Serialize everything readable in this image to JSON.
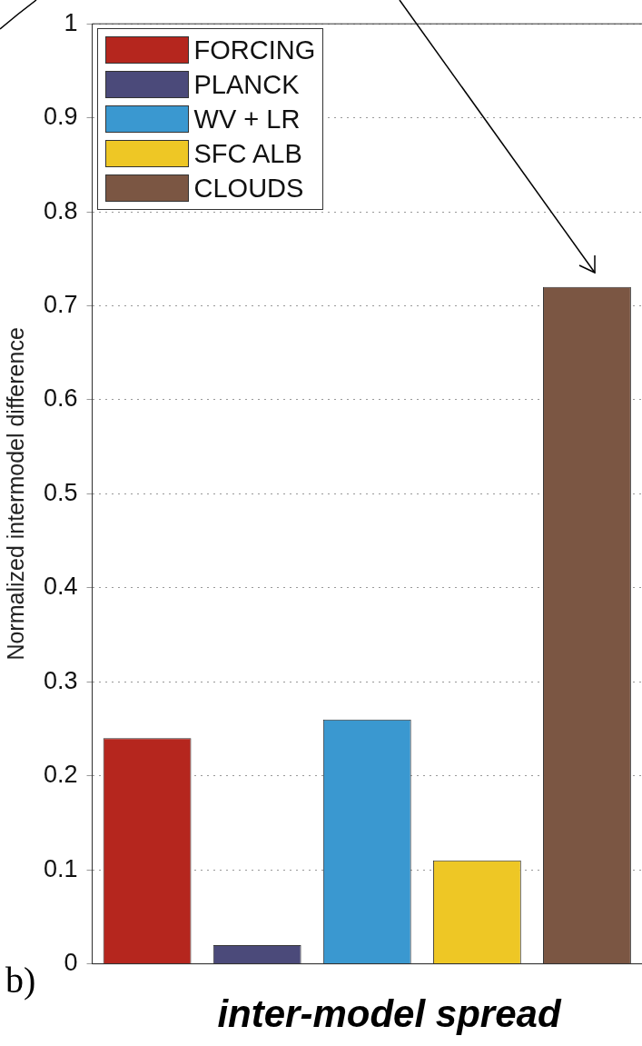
{
  "chart_data": {
    "type": "bar",
    "xlabel": "inter-model spread",
    "ylabel": "Normalized intermodel difference",
    "categories": [
      null,
      null,
      null,
      null,
      null
    ],
    "series": [
      {
        "name": "FORCING",
        "color": "#b5261e",
        "values": [
          0.24,
          null,
          null,
          null,
          null
        ]
      },
      {
        "name": "PLANCK",
        "color": "#4b4a7a",
        "values": [
          null,
          0.02,
          null,
          null,
          null
        ]
      },
      {
        "name": "WV + LR",
        "color": "#3a98d0",
        "values": [
          null,
          null,
          0.26,
          null,
          null
        ]
      },
      {
        "name": "SFC ALB",
        "color": "#eec725",
        "values": [
          null,
          null,
          null,
          0.11,
          null
        ]
      },
      {
        "name": "CLOUDS",
        "color": "#7b5643",
        "values": [
          null,
          null,
          null,
          null,
          0.72
        ]
      }
    ],
    "ylim": [
      0,
      1
    ],
    "yticks": [
      0,
      0.1,
      0.2,
      0.3,
      0.4,
      0.5,
      0.6,
      0.7,
      0.8,
      0.9,
      1
    ],
    "grid": "y",
    "legend": "top left",
    "annotations": [
      "b)"
    ]
  }
}
